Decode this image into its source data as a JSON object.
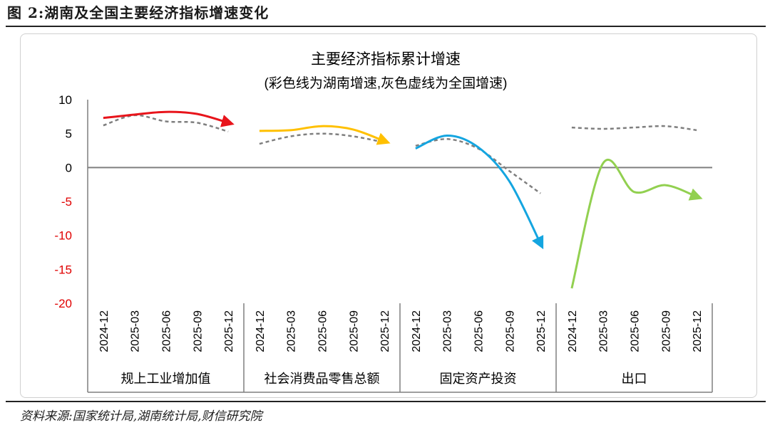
{
  "figure_label": "图 2:湖南及全国主要经济指标增速变化",
  "source": "资料来源:国家统计局,湖南统计局,财信研究院",
  "chart_data": {
    "type": "line",
    "title": "主要经济指标累计增速",
    "subtitle": "(彩色线为湖南增速,灰色虚线为全国增速)",
    "ylim": [
      -20,
      10
    ],
    "y_ticks": [
      "10",
      "5",
      "0",
      "-5",
      "-10",
      "-15",
      "-20"
    ],
    "y_tick_values": [
      10,
      5,
      0,
      -5,
      -10,
      -15,
      -20
    ],
    "positive_tick_color": "#000000",
    "negative_tick_color": "#e00000",
    "x": [
      "2024-12",
      "2025-03",
      "2025-06",
      "2025-09",
      "2025-12"
    ],
    "groups": [
      {
        "name": "规上工业增加值",
        "color": "#e8141b",
        "hunan": [
          7.3,
          7.8,
          8.2,
          7.9,
          6.6
        ],
        "national": [
          6.2,
          7.7,
          6.8,
          6.6,
          5.3
        ]
      },
      {
        "name": "社会消费品零售总额",
        "color": "#ffc000",
        "hunan": [
          5.4,
          5.5,
          6.1,
          5.6,
          3.9
        ],
        "national": [
          3.5,
          4.6,
          5.0,
          4.6,
          3.7
        ]
      },
      {
        "name": "固定资产投资",
        "color": "#14a5e0",
        "hunan": [
          2.8,
          4.7,
          3.0,
          -2.0,
          -11.2
        ],
        "national": [
          3.2,
          4.2,
          2.8,
          -0.5,
          -3.8
        ]
      },
      {
        "name": "出口",
        "color": "#92d050",
        "hunan": [
          -17.8,
          0.6,
          -3.6,
          -2.6,
          -4.3
        ],
        "national": [
          5.9,
          5.7,
          5.9,
          6.1,
          5.5
        ]
      }
    ],
    "national_style": "grey dashed",
    "national_color": "#7f7f7f",
    "arrow_at_end": true
  }
}
